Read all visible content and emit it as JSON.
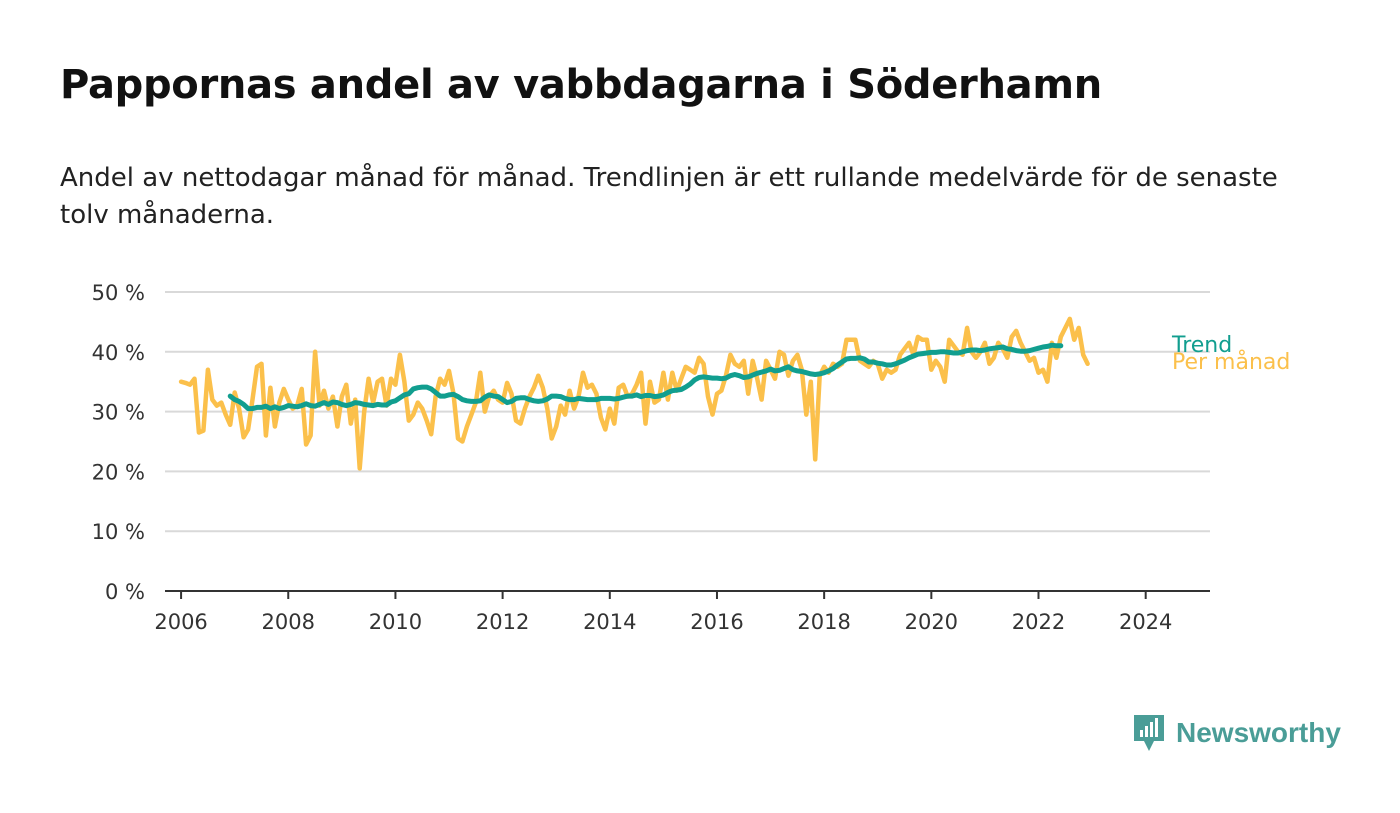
{
  "header": {
    "title": "Pappornas andel av vabbdagarna i Söderhamn",
    "subtitle": "Andel av nettodagar månad för månad. Trendlinjen är ett rullande medelvärde för de senaste tolv månaderna."
  },
  "brand": {
    "name": "Newsworthy",
    "icon": "newsworthy-logo-icon",
    "color": "#4a9d97"
  },
  "chart_data": {
    "type": "line",
    "title": "Pappornas andel av vabbdagarna i Söderhamn",
    "subtitle": "Andel av nettodagar månad för månad. Trendlinjen är ett rullande medelvärde för de senaste tolv månaderna.",
    "xlabel": "",
    "ylabel": "",
    "xlim": [
      2005.7,
      2025.2
    ],
    "ylim": [
      0,
      50
    ],
    "x_ticks": [
      "2006",
      "2008",
      "2010",
      "2012",
      "2014",
      "2016",
      "2018",
      "2020",
      "2022",
      "2024"
    ],
    "y_ticks": [
      "0 %",
      "10 %",
      "20 %",
      "30 %",
      "40 %",
      "50 %"
    ],
    "grid": "horizontal",
    "legend": "inline-right",
    "series": [
      {
        "name": "Per månad",
        "color": "#fbc04b",
        "x_start": "2006-01",
        "frequency": "monthly",
        "values": [
          35.0,
          34.8,
          34.5,
          35.5,
          26.5,
          26.8,
          37.0,
          32.0,
          31.0,
          31.5,
          29.5,
          27.8,
          33.2,
          30.5,
          25.7,
          27.0,
          32.0,
          37.5,
          38.0,
          26.0,
          34.0,
          27.5,
          31.5,
          33.8,
          32.0,
          30.5,
          31.0,
          33.8,
          24.5,
          26.0,
          40.0,
          31.0,
          33.5,
          30.5,
          32.5,
          27.5,
          32.5,
          34.5,
          28.0,
          32.0,
          20.5,
          30.0,
          35.5,
          31.5,
          35.0,
          35.5,
          31.0,
          35.5,
          34.5,
          39.5,
          35.0,
          28.5,
          29.5,
          31.5,
          30.5,
          28.5,
          26.2,
          32.5,
          35.5,
          34.5,
          36.8,
          33.0,
          25.5,
          25.0,
          27.5,
          29.5,
          31.5,
          36.5,
          30.0,
          32.5,
          33.5,
          32.0,
          31.5,
          34.8,
          33.0,
          28.5,
          28.0,
          30.5,
          32.5,
          34.0,
          36.0,
          34.0,
          30.5,
          25.5,
          27.5,
          31.0,
          29.5,
          33.5,
          30.5,
          32.5,
          36.5,
          34.0,
          34.5,
          33.0,
          29.0,
          27.0,
          30.5,
          28.0,
          34.0,
          34.5,
          32.5,
          33.0,
          34.5,
          36.5,
          28.0,
          35.0,
          31.5,
          32.0,
          36.5,
          32.0,
          36.5,
          33.5,
          35.5,
          37.5,
          37.0,
          36.5,
          39.0,
          38.0,
          32.5,
          29.5,
          33.0,
          33.5,
          36.0,
          39.5,
          38.0,
          37.5,
          38.5,
          33.0,
          38.5,
          35.5,
          32.0,
          38.5,
          37.0,
          35.5,
          40.0,
          39.5,
          36.0,
          38.5,
          39.5,
          37.0,
          29.5,
          35.0,
          22.0,
          36.0,
          37.5,
          36.5,
          38.0,
          37.5,
          38.0,
          42.0,
          42.0,
          42.0,
          38.5,
          38.0,
          37.5,
          38.5,
          38.0,
          35.5,
          37.0,
          36.5,
          37.0,
          39.5,
          40.5,
          41.5,
          39.5,
          42.5,
          42.0,
          42.0,
          37.0,
          38.5,
          37.5,
          35.0,
          42.0,
          41.0,
          40.0,
          39.5,
          44.0,
          40.0,
          39.0,
          40.0,
          41.5,
          38.0,
          39.0,
          41.5,
          40.5,
          39.0,
          42.5,
          43.5,
          41.5,
          40.0,
          38.5,
          39.0,
          36.5,
          37.0,
          35.0,
          41.5,
          39.0,
          42.5,
          44.0,
          45.5,
          42.0,
          44.0,
          39.5,
          38.0
        ]
      },
      {
        "name": "Trend",
        "color": "#119e8f",
        "x_start": "2006-12",
        "frequency": "monthly",
        "values": [
          32.6,
          32.0,
          31.7,
          31.2,
          30.5,
          30.5,
          30.7,
          30.7,
          30.9,
          30.5,
          30.8,
          30.5,
          30.7,
          31.0,
          30.9,
          30.8,
          31.0,
          31.3,
          31.0,
          30.9,
          31.2,
          31.5,
          31.2,
          31.6,
          31.5,
          31.2,
          31.0,
          31.2,
          31.5,
          31.4,
          31.2,
          31.1,
          31.0,
          31.2,
          31.1,
          31.1,
          31.6,
          31.8,
          32.3,
          32.8,
          33.0,
          33.8,
          34.0,
          34.1,
          34.1,
          33.8,
          33.2,
          32.6,
          32.6,
          32.8,
          32.9,
          32.5,
          32.0,
          31.8,
          31.7,
          31.7,
          31.8,
          32.4,
          32.8,
          32.6,
          32.5,
          32.0,
          31.5,
          31.7,
          32.2,
          32.3,
          32.3,
          32.0,
          31.8,
          31.7,
          31.8,
          32.1,
          32.6,
          32.6,
          32.5,
          32.2,
          32.0,
          32.0,
          32.2,
          32.1,
          32.0,
          32.0,
          32.0,
          32.2,
          32.2,
          32.2,
          32.1,
          32.2,
          32.4,
          32.6,
          32.6,
          32.8,
          32.5,
          32.7,
          32.7,
          32.5,
          32.6,
          32.8,
          33.2,
          33.5,
          33.6,
          33.7,
          34.1,
          34.6,
          35.3,
          35.7,
          35.8,
          35.7,
          35.6,
          35.6,
          35.5,
          35.6,
          36.0,
          36.2,
          36.0,
          35.7,
          35.8,
          36.1,
          36.4,
          36.6,
          36.8,
          37.1,
          36.8,
          36.9,
          37.2,
          37.5,
          37.0,
          36.8,
          36.7,
          36.5,
          36.3,
          36.2,
          36.3,
          36.5,
          36.8,
          37.2,
          37.8,
          38.3,
          38.8,
          38.9,
          38.9,
          39.0,
          38.8,
          38.3,
          38.3,
          38.1,
          38.0,
          37.8,
          37.8,
          38.0,
          38.3,
          38.6,
          39.0,
          39.3,
          39.6,
          39.7,
          39.8,
          39.9,
          39.9,
          40.0,
          40.0,
          39.9,
          39.8,
          39.8,
          40.0,
          40.2,
          40.3,
          40.3,
          40.2,
          40.3,
          40.5,
          40.6,
          40.7,
          40.8,
          40.5,
          40.4,
          40.2,
          40.1,
          40.1,
          40.2,
          40.4,
          40.6,
          40.8,
          40.9,
          41.1,
          41.0,
          41.0
        ]
      }
    ]
  }
}
